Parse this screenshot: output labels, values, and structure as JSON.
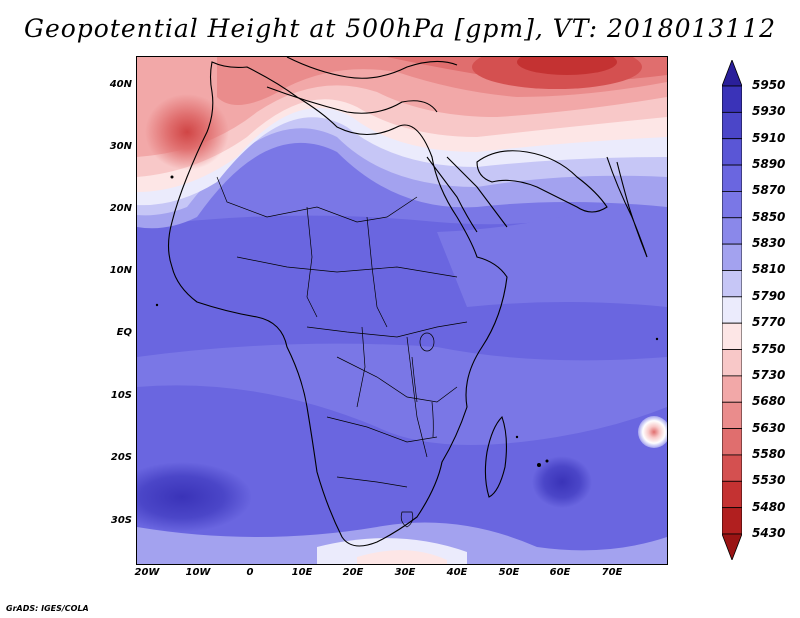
{
  "title": "Geopotential Height at 500hPa [gpm], VT: 2018013112",
  "footer": "GrADS: IGES/COLA",
  "map": {
    "lat_labels": [
      "40N",
      "30N",
      "20N",
      "10N",
      "EQ",
      "10S",
      "20S",
      "30S"
    ],
    "lon_labels": [
      "20W",
      "10W",
      "0",
      "10E",
      "20E",
      "30E",
      "40E",
      "50E",
      "60E",
      "70E"
    ]
  },
  "colorbar": {
    "levels": [
      "5950",
      "5930",
      "5910",
      "5890",
      "5870",
      "5850",
      "5830",
      "5810",
      "5790",
      "5770",
      "5750",
      "5730",
      "5680",
      "5630",
      "5580",
      "5530",
      "5480",
      "5430"
    ],
    "colors": [
      "#2a1f9a",
      "#3a33b8",
      "#4b46c8",
      "#5a56d6",
      "#6a66e0",
      "#7a77e6",
      "#8a88ea",
      "#a3a2ef",
      "#c6c6f6",
      "#ebebfc",
      "#fde6e6",
      "#f8c8c8",
      "#f2a8a8",
      "#ea8c8c",
      "#e06e6e",
      "#d45050",
      "#c43232",
      "#b11f1f",
      "#9a1414"
    ],
    "low_arrow_color": "#9a1414",
    "high_arrow_color": "#2a1f9a"
  }
}
